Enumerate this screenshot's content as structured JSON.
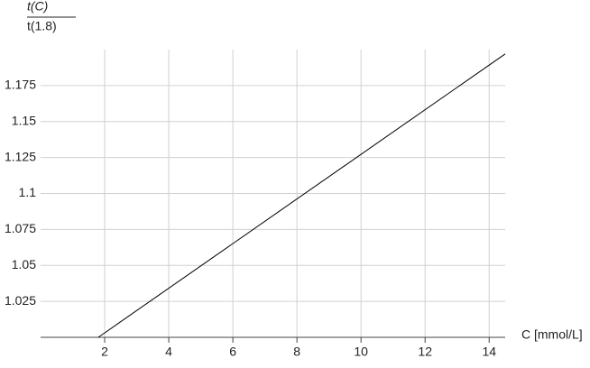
{
  "chart_data": {
    "type": "line",
    "y_label_numerator": "t(C)",
    "y_label_denominator": "t(1.8)",
    "x_label": "C [mmol/L]",
    "x": [
      1.8,
      14.5
    ],
    "series": [
      {
        "color": "#000000",
        "values": [
          1.0,
          1.197
        ]
      }
    ],
    "xlim": [
      0,
      14.5
    ],
    "ylim": [
      1.0,
      1.2
    ],
    "xticks": [
      2,
      4,
      6,
      8,
      10,
      12,
      14
    ],
    "yticks": [
      1.025,
      1.05,
      1.075,
      1.1,
      1.125,
      1.15,
      1.175
    ],
    "grid": true
  }
}
